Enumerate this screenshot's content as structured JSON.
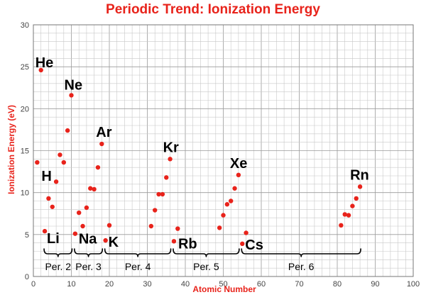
{
  "chart_data": {
    "type": "scatter",
    "title": "Periodic Trend: Ionization Energy",
    "xlabel": "Atomic Number",
    "ylabel": "Ionization Energy (eV)",
    "xlim": [
      0,
      100
    ],
    "ylim": [
      0,
      30
    ],
    "x_ticks": [
      0,
      10,
      20,
      30,
      40,
      50,
      60,
      70,
      80,
      90,
      100
    ],
    "y_ticks": [
      0,
      5,
      10,
      15,
      20,
      25,
      30
    ],
    "grid": true,
    "point_color": "#e8231b",
    "title_color": "#e8231b",
    "points": [
      {
        "x": 1,
        "y": 13.6
      },
      {
        "x": 2,
        "y": 24.6
      },
      {
        "x": 3,
        "y": 5.4
      },
      {
        "x": 4,
        "y": 9.3
      },
      {
        "x": 5,
        "y": 8.3
      },
      {
        "x": 6,
        "y": 11.3
      },
      {
        "x": 7,
        "y": 14.5
      },
      {
        "x": 8,
        "y": 13.6
      },
      {
        "x": 9,
        "y": 17.4
      },
      {
        "x": 10,
        "y": 21.6
      },
      {
        "x": 11,
        "y": 5.1
      },
      {
        "x": 12,
        "y": 7.6
      },
      {
        "x": 13,
        "y": 6.0
      },
      {
        "x": 14,
        "y": 8.2
      },
      {
        "x": 15,
        "y": 10.5
      },
      {
        "x": 16,
        "y": 10.4
      },
      {
        "x": 17,
        "y": 13.0
      },
      {
        "x": 18,
        "y": 15.8
      },
      {
        "x": 19,
        "y": 4.3
      },
      {
        "x": 20,
        "y": 6.1
      },
      {
        "x": 31,
        "y": 6.0
      },
      {
        "x": 32,
        "y": 7.9
      },
      {
        "x": 33,
        "y": 9.8
      },
      {
        "x": 34,
        "y": 9.8
      },
      {
        "x": 35,
        "y": 11.8
      },
      {
        "x": 36,
        "y": 14.0
      },
      {
        "x": 37,
        "y": 4.2
      },
      {
        "x": 38,
        "y": 5.7
      },
      {
        "x": 49,
        "y": 5.8
      },
      {
        "x": 50,
        "y": 7.3
      },
      {
        "x": 51,
        "y": 8.6
      },
      {
        "x": 52,
        "y": 9.0
      },
      {
        "x": 53,
        "y": 10.5
      },
      {
        "x": 54,
        "y": 12.1
      },
      {
        "x": 55,
        "y": 3.9
      },
      {
        "x": 56,
        "y": 5.2
      },
      {
        "x": 81,
        "y": 6.1
      },
      {
        "x": 82,
        "y": 7.4
      },
      {
        "x": 83,
        "y": 7.3
      },
      {
        "x": 84,
        "y": 8.4
      },
      {
        "x": 85,
        "y": 9.3
      },
      {
        "x": 86,
        "y": 10.7
      }
    ],
    "element_labels": [
      {
        "text": "He",
        "x": 2,
        "y": 24.6
      },
      {
        "text": "H",
        "x": 1,
        "y": 13.6
      },
      {
        "text": "Ne",
        "x": 10,
        "y": 21.6
      },
      {
        "text": "Li",
        "x": 3,
        "y": 5.4
      },
      {
        "text": "Ar",
        "x": 18,
        "y": 15.8
      },
      {
        "text": "Na",
        "x": 11,
        "y": 5.1
      },
      {
        "text": "K",
        "x": 19,
        "y": 4.3
      },
      {
        "text": "Kr",
        "x": 36,
        "y": 14.0
      },
      {
        "text": "Rb",
        "x": 37,
        "y": 4.2
      },
      {
        "text": "Xe",
        "x": 54,
        "y": 12.1
      },
      {
        "text": "Cs",
        "x": 55,
        "y": 3.9
      },
      {
        "text": "Rn",
        "x": 86,
        "y": 10.7
      }
    ],
    "periods": [
      {
        "label": "Per. 2",
        "from": 3,
        "to": 10
      },
      {
        "label": "Per. 3",
        "from": 11,
        "to": 18
      },
      {
        "label": "Per. 4",
        "from": 19,
        "to": 36
      },
      {
        "label": "Per. 5",
        "from": 37,
        "to": 54
      },
      {
        "label": "Per. 6",
        "from": 55,
        "to": 86
      }
    ]
  }
}
